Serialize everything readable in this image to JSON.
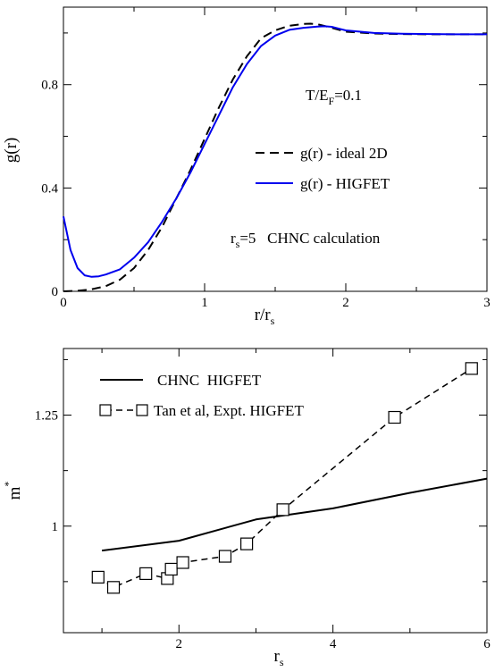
{
  "chart_data": [
    {
      "type": "line",
      "xlabel": "r/r",
      "xlabel_sub": "s",
      "ylabel": "g(r)",
      "xlim": [
        0,
        3
      ],
      "ylim": [
        0,
        1.1
      ],
      "xticks": [
        "0",
        "1",
        "2",
        "3"
      ],
      "xtick_values": [
        0,
        1,
        2,
        3
      ],
      "yticks": [
        "0",
        "0.4",
        "0.8"
      ],
      "ytick_values": [
        0,
        0.4,
        0.8
      ],
      "legend_placement": "right",
      "annotations": {
        "temperature_main": "T/E",
        "temperature_sub": "F",
        "temperature_rest": "=0.1",
        "rs_main": "r",
        "rs_sub": "s",
        "rs_rest": "=5   CHNC calculation"
      },
      "series": [
        {
          "name": "g(r) - ideal 2D",
          "color": "#000000",
          "dash": "dashed",
          "x": [
            0,
            0.1,
            0.2,
            0.3,
            0.4,
            0.5,
            0.6,
            0.7,
            0.8,
            0.9,
            1.0,
            1.1,
            1.2,
            1.3,
            1.4,
            1.5,
            1.6,
            1.7,
            1.75,
            1.8,
            1.9,
            2.0,
            2.2,
            2.4,
            2.6,
            2.8,
            3.0
          ],
          "y": [
            0.0,
            0.002,
            0.008,
            0.02,
            0.045,
            0.09,
            0.16,
            0.25,
            0.36,
            0.47,
            0.59,
            0.71,
            0.82,
            0.91,
            0.98,
            1.01,
            1.028,
            1.035,
            1.036,
            1.034,
            1.02,
            1.005,
            0.998,
            0.996,
            0.995,
            0.995,
            0.995
          ]
        },
        {
          "name": "g(r) - HIGFET",
          "color": "#0000ee",
          "dash": "solid",
          "x": [
            0,
            0.05,
            0.1,
            0.15,
            0.2,
            0.25,
            0.3,
            0.4,
            0.5,
            0.6,
            0.7,
            0.8,
            0.9,
            1.0,
            1.1,
            1.2,
            1.3,
            1.4,
            1.5,
            1.6,
            1.7,
            1.8,
            1.85,
            1.9,
            2.0,
            2.2,
            2.4,
            2.6,
            2.8,
            3.0
          ],
          "y": [
            0.29,
            0.16,
            0.09,
            0.062,
            0.056,
            0.058,
            0.065,
            0.085,
            0.13,
            0.19,
            0.27,
            0.36,
            0.46,
            0.57,
            0.68,
            0.79,
            0.88,
            0.95,
            0.99,
            1.012,
            1.02,
            1.025,
            1.026,
            1.024,
            1.01,
            1.0,
            0.997,
            0.996,
            0.995,
            0.995
          ]
        }
      ]
    },
    {
      "type": "line",
      "xlabel": "r",
      "xlabel_sub": "s",
      "ylabel": "m",
      "ylabel_sup": "*",
      "xlim": [
        0.5,
        6
      ],
      "ylim": [
        0.76,
        1.4
      ],
      "xticks": [
        "2",
        "4",
        "6"
      ],
      "xtick_values": [
        2,
        4,
        6
      ],
      "yticks": [
        "1",
        "1.25"
      ],
      "ytick_values": [
        1,
        1.25
      ],
      "legend_placement": "top-left",
      "series": [
        {
          "name": "CHNC  HIGFET",
          "color": "#000000",
          "dash": "solid",
          "marker": "none",
          "x": [
            1,
            2,
            3,
            4,
            5,
            6
          ],
          "y": [
            0.945,
            0.967,
            1.015,
            1.04,
            1.075,
            1.107
          ]
        },
        {
          "name": "Tan et al, Expt. HIGFET",
          "color": "#000000",
          "dash": "dashed",
          "marker": "square",
          "x": [
            0.95,
            1.15,
            1.57,
            1.85,
            1.9,
            2.05,
            2.6,
            2.88,
            3.35,
            4.8,
            5.8
          ],
          "y": [
            0.885,
            0.862,
            0.893,
            0.882,
            0.903,
            0.918,
            0.932,
            0.96,
            1.037,
            1.245,
            1.355
          ]
        }
      ]
    }
  ]
}
